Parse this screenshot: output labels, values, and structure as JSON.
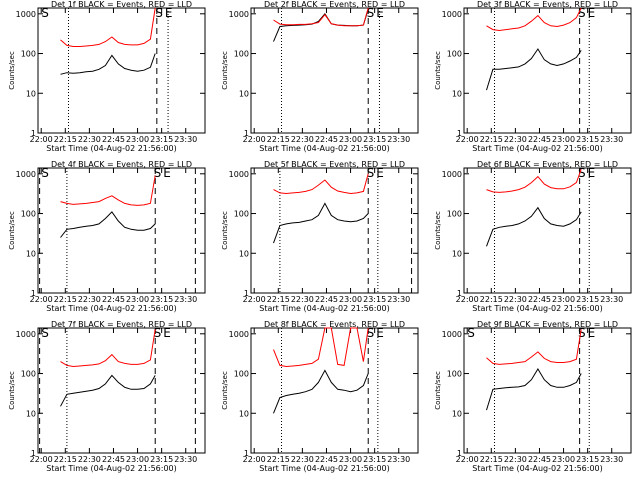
{
  "chart_data": [
    {
      "type": "line",
      "title": "Det 1f BLACK = Events, RED = LLD",
      "x_label": "Start Time (04-Aug-02 21:56:00)",
      "y_label": "Counts/sec",
      "log_y": true,
      "xlim": [
        "21:58",
        "23:42"
      ],
      "ylim": [
        1,
        1400
      ],
      "yticks": [
        1,
        10,
        100,
        1000
      ],
      "xticks": [
        "22:00",
        "22:15",
        "22:30",
        "22:45",
        "23:00",
        "23:15",
        "23:30"
      ],
      "x": [
        "22:12",
        "22:16",
        "22:20",
        "22:24",
        "22:28",
        "22:32",
        "22:36",
        "22:40",
        "22:44",
        "22:48",
        "22:52",
        "22:56",
        "23:00",
        "23:04",
        "23:08",
        "23:11"
      ],
      "series": [
        {
          "color": "#000000",
          "values": [
            30,
            33,
            32,
            33,
            35,
            36,
            40,
            50,
            90,
            55,
            42,
            38,
            36,
            38,
            45,
            100
          ]
        },
        {
          "color": "#ff0000",
          "values": [
            220,
            160,
            150,
            150,
            155,
            160,
            170,
            200,
            260,
            190,
            170,
            165,
            165,
            180,
            230,
            1400
          ]
        }
      ],
      "vlines": [
        {
          "x": "22:17",
          "style": "dotted"
        },
        {
          "x": "23:12",
          "style": "dashed"
        },
        {
          "x": "23:19",
          "style": "dotted"
        }
      ],
      "annotations": [
        {
          "label": "S",
          "x": "22:00"
        },
        {
          "label": "S",
          "x": "23:11"
        },
        {
          "label": "E",
          "x": "23:17"
        }
      ]
    },
    {
      "type": "line",
      "title": "Det 2f BLACK = Events, RED = LLD",
      "x_label": "Start Time (04-Aug-02 21:56:00)",
      "y_label": "Counts/sec",
      "log_y": true,
      "xlim": [
        "21:58",
        "23:42"
      ],
      "ylim": [
        1,
        1400
      ],
      "yticks": [
        1,
        10,
        100,
        1000
      ],
      "xticks": [
        "22:00",
        "22:15",
        "22:30",
        "22:45",
        "23:00",
        "23:15",
        "23:30"
      ],
      "x": [
        "22:12",
        "22:16",
        "22:20",
        "22:24",
        "22:28",
        "22:32",
        "22:36",
        "22:40",
        "22:44",
        "22:48",
        "22:52",
        "22:56",
        "23:00",
        "23:04",
        "23:08",
        "23:11"
      ],
      "series": [
        {
          "color": "#000000",
          "values": [
            200,
            480,
            500,
            510,
            520,
            530,
            550,
            640,
            1000,
            560,
            520,
            510,
            500,
            500,
            520,
            1300
          ]
        },
        {
          "color": "#ff0000",
          "values": [
            700,
            550,
            530,
            530,
            540,
            540,
            560,
            600,
            950,
            560,
            520,
            500,
            500,
            500,
            520,
            1400
          ]
        }
      ],
      "vlines": [
        {
          "x": "22:17",
          "style": "dotted"
        },
        {
          "x": "23:11",
          "style": "dashed"
        },
        {
          "x": "23:18",
          "style": "dotted"
        }
      ],
      "annotations": [
        {
          "label": "S",
          "x": "23:10"
        },
        {
          "label": "E",
          "x": "23:16"
        }
      ]
    },
    {
      "type": "line",
      "title": "Det 3f BLACK = Events, RED = LLD",
      "x_label": "Start Time (04-Aug-02 21:56:00)",
      "y_label": "Counts/sec",
      "log_y": true,
      "xlim": [
        "21:58",
        "23:42"
      ],
      "ylim": [
        1,
        1400
      ],
      "yticks": [
        1,
        10,
        100,
        1000
      ],
      "xticks": [
        "22:00",
        "22:15",
        "22:30",
        "22:45",
        "23:00",
        "23:15",
        "23:30"
      ],
      "x": [
        "22:12",
        "22:16",
        "22:20",
        "22:24",
        "22:28",
        "22:32",
        "22:36",
        "22:40",
        "22:44",
        "22:48",
        "22:52",
        "22:56",
        "23:00",
        "23:04",
        "23:08",
        "23:11"
      ],
      "series": [
        {
          "color": "#000000",
          "values": [
            12,
            40,
            40,
            42,
            44,
            46,
            55,
            75,
            130,
            70,
            55,
            50,
            55,
            65,
            80,
            120
          ]
        },
        {
          "color": "#ff0000",
          "values": [
            500,
            400,
            380,
            400,
            420,
            440,
            500,
            650,
            900,
            600,
            500,
            480,
            520,
            600,
            800,
            1400
          ]
        }
      ],
      "vlines": [
        {
          "x": "22:17",
          "style": "dotted"
        },
        {
          "x": "23:10",
          "style": "dashed"
        },
        {
          "x": "23:16",
          "style": "dotted"
        }
      ],
      "annotations": [
        {
          "label": "S",
          "x": "23:09"
        },
        {
          "label": "E",
          "x": "23:15"
        }
      ]
    },
    {
      "type": "line",
      "title": "Det 4f BLACK = Events, RED = LLD",
      "x_label": "Start Time (04-Aug-02 21:56:00)",
      "y_label": "Counts/sec",
      "log_y": true,
      "xlim": [
        "21:58",
        "23:42"
      ],
      "ylim": [
        1,
        1400
      ],
      "yticks": [
        1,
        10,
        100,
        1000
      ],
      "xticks": [
        "22:00",
        "22:15",
        "22:30",
        "22:45",
        "23:00",
        "23:15",
        "23:30"
      ],
      "x": [
        "22:12",
        "22:16",
        "22:20",
        "22:24",
        "22:28",
        "22:32",
        "22:36",
        "22:40",
        "22:44",
        "22:48",
        "22:52",
        "22:56",
        "23:00",
        "23:04",
        "23:08",
        "23:11"
      ],
      "series": [
        {
          "color": "#000000",
          "values": [
            25,
            40,
            42,
            45,
            48,
            50,
            55,
            75,
            110,
            65,
            45,
            40,
            38,
            38,
            42,
            55
          ]
        },
        {
          "color": "#ff0000",
          "values": [
            200,
            180,
            170,
            175,
            180,
            190,
            200,
            240,
            280,
            220,
            180,
            165,
            160,
            165,
            180,
            900
          ]
        }
      ],
      "vlines": [
        {
          "x": "21:59",
          "style": "dashed"
        },
        {
          "x": "22:16",
          "style": "dotted"
        },
        {
          "x": "23:11",
          "style": "dashed"
        },
        {
          "x": "23:36",
          "style": "dashed"
        }
      ],
      "annotations": [
        {
          "label": "S",
          "x": "22:00"
        },
        {
          "label": "S",
          "x": "23:10"
        },
        {
          "label": "E",
          "x": "23:16"
        }
      ]
    },
    {
      "type": "line",
      "title": "Det 5f BLACK = Events, RED = LLD",
      "x_label": "Start Time (04-Aug-02 21:56:00)",
      "y_label": "Counts/sec",
      "log_y": true,
      "xlim": [
        "21:58",
        "23:42"
      ],
      "ylim": [
        1,
        1400
      ],
      "yticks": [
        1,
        10,
        100,
        1000
      ],
      "xticks": [
        "22:00",
        "22:15",
        "22:30",
        "22:45",
        "23:00",
        "23:15",
        "23:30"
      ],
      "x": [
        "22:12",
        "22:16",
        "22:20",
        "22:24",
        "22:28",
        "22:32",
        "22:36",
        "22:40",
        "22:44",
        "22:48",
        "22:52",
        "22:56",
        "23:00",
        "23:04",
        "23:08",
        "23:11"
      ],
      "series": [
        {
          "color": "#000000",
          "values": [
            18,
            50,
            55,
            58,
            60,
            65,
            70,
            90,
            180,
            90,
            70,
            65,
            62,
            65,
            75,
            100
          ]
        },
        {
          "color": "#ff0000",
          "values": [
            400,
            330,
            320,
            330,
            340,
            360,
            400,
            520,
            700,
            460,
            370,
            340,
            320,
            330,
            360,
            1000
          ]
        }
      ],
      "vlines": [
        {
          "x": "22:16",
          "style": "dotted"
        },
        {
          "x": "23:11",
          "style": "dashed"
        },
        {
          "x": "23:17",
          "style": "dotted"
        },
        {
          "x": "23:38",
          "style": "dashed"
        }
      ],
      "annotations": [
        {
          "label": "S",
          "x": "23:10"
        },
        {
          "label": "E",
          "x": "23:16"
        }
      ]
    },
    {
      "type": "line",
      "title": "Det 6f BLACK = Events, RED = LLD",
      "x_label": "Start Time (04-Aug-02 21:56:00)",
      "y_label": "Counts/sec",
      "log_y": true,
      "xlim": [
        "21:58",
        "23:42"
      ],
      "ylim": [
        1,
        1400
      ],
      "yticks": [
        1,
        10,
        100,
        1000
      ],
      "xticks": [
        "22:00",
        "22:15",
        "22:30",
        "22:45",
        "23:00",
        "23:15",
        "23:30"
      ],
      "x": [
        "22:12",
        "22:16",
        "22:20",
        "22:24",
        "22:28",
        "22:32",
        "22:36",
        "22:40",
        "22:44",
        "22:48",
        "22:52",
        "22:56",
        "23:00",
        "23:04",
        "23:08",
        "23:11"
      ],
      "series": [
        {
          "color": "#000000",
          "values": [
            15,
            40,
            45,
            48,
            50,
            55,
            65,
            85,
            140,
            75,
            55,
            50,
            48,
            55,
            70,
            110
          ]
        },
        {
          "color": "#ff0000",
          "values": [
            400,
            350,
            340,
            350,
            370,
            400,
            460,
            600,
            850,
            550,
            450,
            420,
            420,
            470,
            600,
            1300
          ]
        }
      ],
      "vlines": [
        {
          "x": "22:17",
          "style": "dotted"
        },
        {
          "x": "23:10",
          "style": "dashed"
        },
        {
          "x": "23:16",
          "style": "dotted"
        }
      ],
      "annotations": [
        {
          "label": "S",
          "x": "23:09"
        },
        {
          "label": "E",
          "x": "23:15"
        }
      ]
    },
    {
      "type": "line",
      "title": "Det 7f BLACK = Events, RED = LLD",
      "x_label": "Start Time (04-Aug-02 21:56:00)",
      "y_label": "Counts/sec",
      "log_y": true,
      "xlim": [
        "21:58",
        "23:42"
      ],
      "ylim": [
        1,
        1400
      ],
      "yticks": [
        1,
        10,
        100,
        1000
      ],
      "xticks": [
        "22:00",
        "22:15",
        "22:30",
        "22:45",
        "23:00",
        "23:15",
        "23:30"
      ],
      "x": [
        "22:12",
        "22:16",
        "22:20",
        "22:24",
        "22:28",
        "22:32",
        "22:36",
        "22:40",
        "22:44",
        "22:48",
        "22:52",
        "22:56",
        "23:00",
        "23:04",
        "23:08",
        "23:11"
      ],
      "series": [
        {
          "color": "#000000",
          "values": [
            15,
            30,
            32,
            34,
            36,
            38,
            42,
            55,
            90,
            60,
            45,
            40,
            40,
            42,
            55,
            90
          ]
        },
        {
          "color": "#ff0000",
          "values": [
            200,
            160,
            150,
            155,
            160,
            165,
            175,
            210,
            300,
            200,
            180,
            170,
            170,
            180,
            220,
            1300
          ]
        }
      ],
      "vlines": [
        {
          "x": "21:59",
          "style": "dashed"
        },
        {
          "x": "22:16",
          "style": "dotted"
        },
        {
          "x": "23:11",
          "style": "dashed"
        },
        {
          "x": "23:36",
          "style": "dashed"
        }
      ],
      "annotations": [
        {
          "label": "S",
          "x": "22:00"
        },
        {
          "label": "S",
          "x": "23:10"
        },
        {
          "label": "E",
          "x": "23:16"
        }
      ]
    },
    {
      "type": "line",
      "title": "Det 8f BLACK = Events, RED = LLD",
      "x_label": "Start Time (04-Aug-02 21:56:00)",
      "y_label": "Counts/sec",
      "log_y": true,
      "xlim": [
        "21:58",
        "23:42"
      ],
      "ylim": [
        1,
        1400
      ],
      "yticks": [
        1,
        10,
        100,
        1000
      ],
      "xticks": [
        "22:00",
        "22:15",
        "22:30",
        "22:45",
        "23:00",
        "23:15",
        "23:30"
      ],
      "x": [
        "22:12",
        "22:16",
        "22:20",
        "22:24",
        "22:28",
        "22:32",
        "22:36",
        "22:40",
        "22:44",
        "22:48",
        "22:52",
        "22:56",
        "23:00",
        "23:04",
        "23:08",
        "23:11"
      ],
      "series": [
        {
          "color": "#000000",
          "values": [
            10,
            25,
            28,
            30,
            32,
            35,
            40,
            60,
            120,
            60,
            40,
            38,
            35,
            38,
            50,
            100
          ]
        },
        {
          "color": "#ff0000",
          "values": [
            400,
            160,
            150,
            155,
            160,
            170,
            180,
            230,
            1400,
            1400,
            170,
            160,
            1400,
            1400,
            200,
            1400
          ]
        }
      ],
      "vlines": [
        {
          "x": "22:17",
          "style": "dotted"
        },
        {
          "x": "23:11",
          "style": "dashed"
        },
        {
          "x": "23:17",
          "style": "dotted"
        }
      ],
      "annotations": [
        {
          "label": "S",
          "x": "23:10"
        },
        {
          "label": "E",
          "x": "23:16"
        }
      ]
    },
    {
      "type": "line",
      "title": "Det 9f BLACK = Events, RED = LLD",
      "x_label": "Start Time (04-Aug-02 21:56:00)",
      "y_label": "Counts/sec",
      "log_y": true,
      "xlim": [
        "21:58",
        "23:42"
      ],
      "ylim": [
        1,
        1400
      ],
      "yticks": [
        1,
        10,
        100,
        1000
      ],
      "xticks": [
        "22:00",
        "22:15",
        "22:30",
        "22:45",
        "23:00",
        "23:15",
        "23:30"
      ],
      "x": [
        "22:12",
        "22:16",
        "22:20",
        "22:24",
        "22:28",
        "22:32",
        "22:36",
        "22:40",
        "22:44",
        "22:48",
        "22:52",
        "22:56",
        "23:00",
        "23:04",
        "23:08",
        "23:11"
      ],
      "series": [
        {
          "color": "#000000",
          "values": [
            12,
            40,
            42,
            44,
            45,
            46,
            50,
            70,
            130,
            70,
            50,
            45,
            45,
            50,
            60,
            100
          ]
        },
        {
          "color": "#ff0000",
          "values": [
            250,
            180,
            170,
            175,
            180,
            190,
            200,
            260,
            350,
            240,
            200,
            190,
            190,
            200,
            230,
            1300
          ]
        }
      ],
      "vlines": [
        {
          "x": "22:17",
          "style": "dotted"
        },
        {
          "x": "23:10",
          "style": "dashed"
        },
        {
          "x": "23:16",
          "style": "dotted"
        }
      ],
      "annotations": [
        {
          "label": "S",
          "x": "22:00"
        },
        {
          "label": "S",
          "x": "23:09"
        },
        {
          "label": "E",
          "x": "23:15"
        }
      ]
    }
  ]
}
